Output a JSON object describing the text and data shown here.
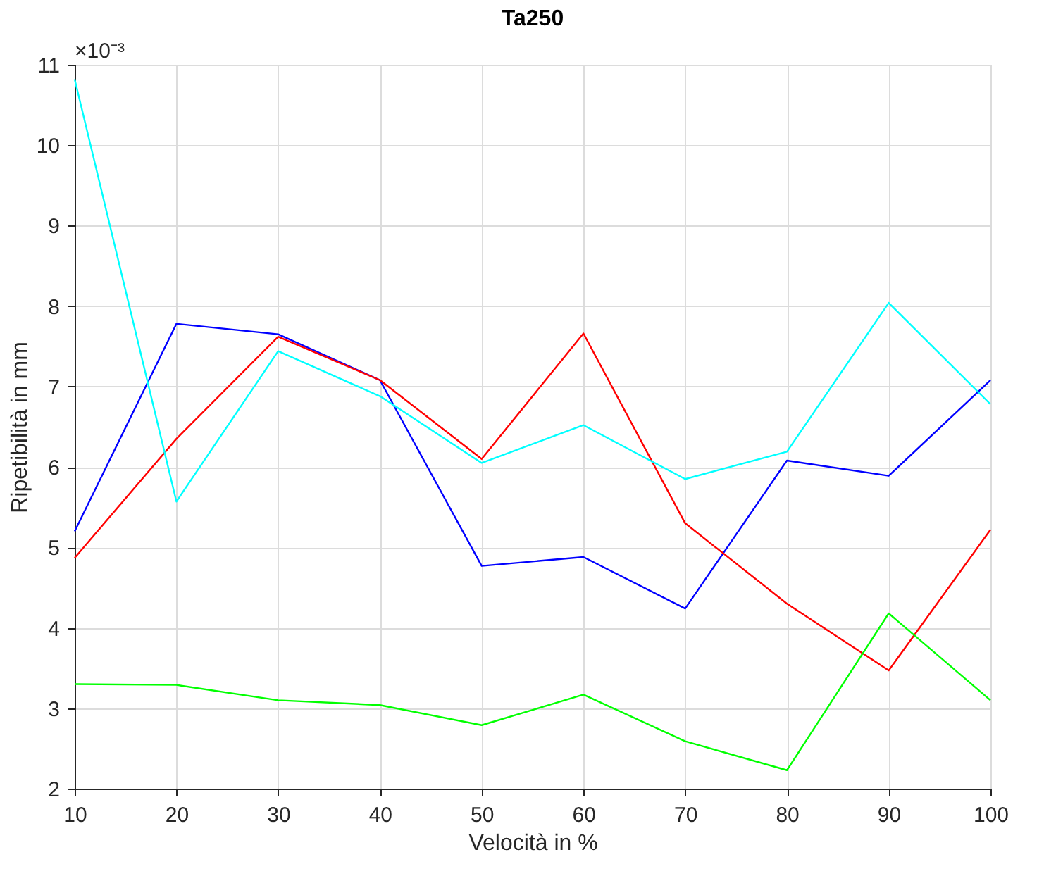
{
  "chart_data": {
    "type": "line",
    "title": "Ta250",
    "xlabel": "Velocità in %",
    "ylabel": "Ripetibilità in mm",
    "x": [
      10,
      20,
      30,
      40,
      50,
      60,
      70,
      80,
      90,
      100
    ],
    "series": [
      {
        "color": "#0000ff",
        "values": [
          5.2,
          7.78,
          7.65,
          7.08,
          4.77,
          4.88,
          4.24,
          6.08,
          5.89,
          7.08
        ]
      },
      {
        "color": "#ff0000",
        "values": [
          4.87,
          6.35,
          7.62,
          7.08,
          6.1,
          7.66,
          5.3,
          4.3,
          3.47,
          5.22
        ]
      },
      {
        "color": "#00ffff",
        "values": [
          10.82,
          5.57,
          7.44,
          6.88,
          6.05,
          6.52,
          5.85,
          6.19,
          8.04,
          6.78
        ]
      },
      {
        "color": "#00ff00",
        "values": [
          3.3,
          3.29,
          3.1,
          3.04,
          2.79,
          3.17,
          2.59,
          2.23,
          4.18,
          3.1
        ]
      }
    ],
    "xlim": [
      10,
      100
    ],
    "xticks": [
      10,
      20,
      30,
      40,
      50,
      60,
      70,
      80,
      90,
      100
    ],
    "ylim": [
      2,
      11
    ],
    "yticks": [
      2,
      3,
      4,
      5,
      6,
      7,
      8,
      9,
      10,
      11
    ],
    "grid": true,
    "annotations": [
      "×10⁻³"
    ]
  }
}
